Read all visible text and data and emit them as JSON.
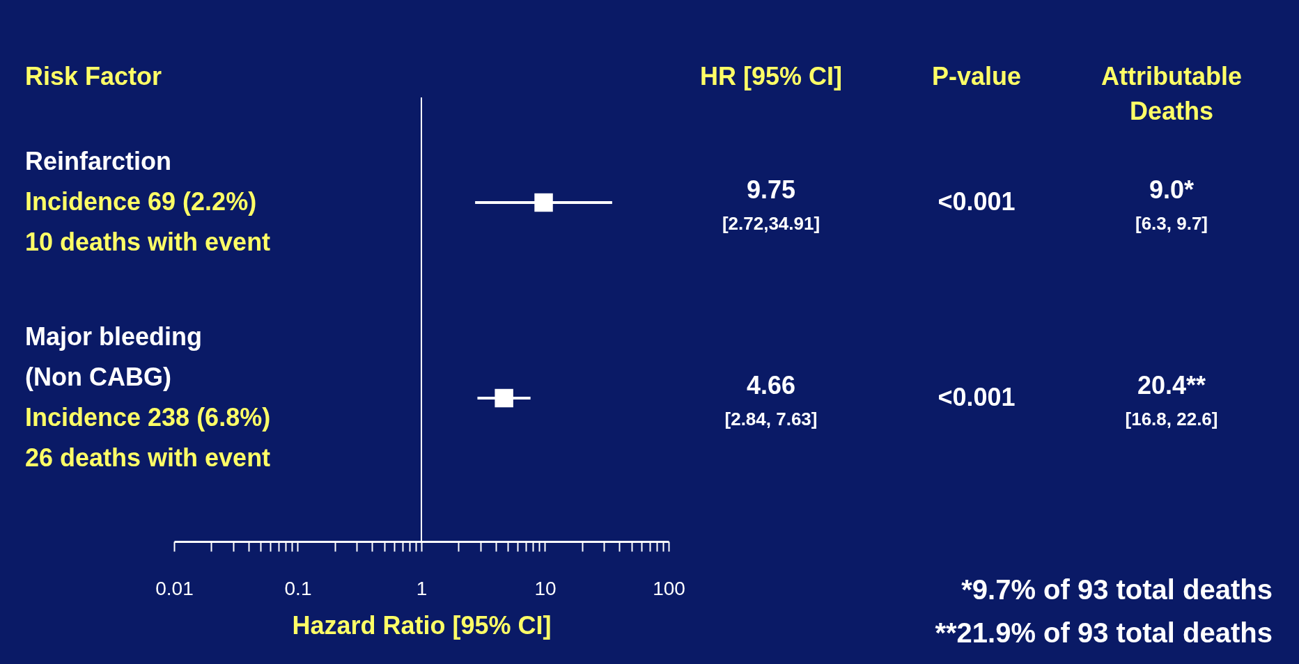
{
  "chart_data": {
    "type": "scatter",
    "orientation": "horizontal",
    "marker": "square",
    "grid": false,
    "legend": false,
    "xlabel": "Hazard Ratio [95% CI]",
    "categories": [
      "Reinfarction",
      "Major bleeding\n(Non CABG)"
    ],
    "series": [
      {
        "color": "#ffffff",
        "values": [
          9.75,
          4.66
        ],
        "errors": [
          [
            2.72,
            34.91
          ],
          [
            2.84,
            7.63
          ]
        ],
        "value_labels": [
          "9.75",
          "4.66"
        ]
      }
    ],
    "xlim": [
      0.01,
      100
    ],
    "xticks": [
      0.01,
      {
        "value": 0.02,
        "label": null
      },
      {
        "value": 0.03,
        "label": null
      },
      {
        "value": 0.04,
        "label": null
      },
      {
        "value": 0.05,
        "label": null
      },
      {
        "value": 0.06,
        "label": null
      },
      {
        "value": 0.07,
        "label": null
      },
      {
        "value": 0.08,
        "label": null
      },
      {
        "value": 0.09,
        "label": null
      },
      0.1,
      {
        "value": 0.2,
        "label": null
      },
      {
        "value": 0.3,
        "label": null
      },
      {
        "value": 0.4,
        "label": null
      },
      {
        "value": 0.5,
        "label": null
      },
      {
        "value": 0.6,
        "label": null
      },
      {
        "value": 0.7,
        "label": null
      },
      {
        "value": 0.8,
        "label": null
      },
      {
        "value": 0.9,
        "label": null
      },
      1,
      {
        "value": 2,
        "label": null
      },
      {
        "value": 3,
        "label": null
      },
      {
        "value": 4,
        "label": null
      },
      {
        "value": 5,
        "label": null
      },
      {
        "value": 6,
        "label": null
      },
      {
        "value": 7,
        "label": null
      },
      {
        "value": 8,
        "label": null
      },
      {
        "value": 9,
        "label": null
      },
      10,
      {
        "value": 20,
        "label": null
      },
      {
        "value": 30,
        "label": null
      },
      {
        "value": 40,
        "label": null
      },
      {
        "value": 50,
        "label": null
      },
      {
        "value": 60,
        "label": null
      },
      {
        "value": 70,
        "label": null
      },
      {
        "value": 80,
        "label": null
      },
      {
        "value": 90,
        "label": null
      },
      100
    ],
    "log": "x",
    "ref_lines": [
      {
        "axis": "x",
        "value": 1,
        "color": "#ffffff"
      }
    ],
    "annotations": [
      "Risk Factor",
      "HR [95% CI]",
      "P-value",
      "Attributable\nDeaths",
      "Incidence 69 (2.2%)\n10 deaths with event",
      "[2.72,34.91]",
      "<0.001",
      "9.0*",
      "[6.3, 9.7]",
      "Incidence 238 (6.8%)\n26 deaths with event",
      "[2.84, 7.63]",
      "<0.001",
      "20.4**",
      "[16.8, 22.6]",
      "*9.7% of 93 total deaths",
      "**21.9% of 93 total deaths"
    ]
  }
}
